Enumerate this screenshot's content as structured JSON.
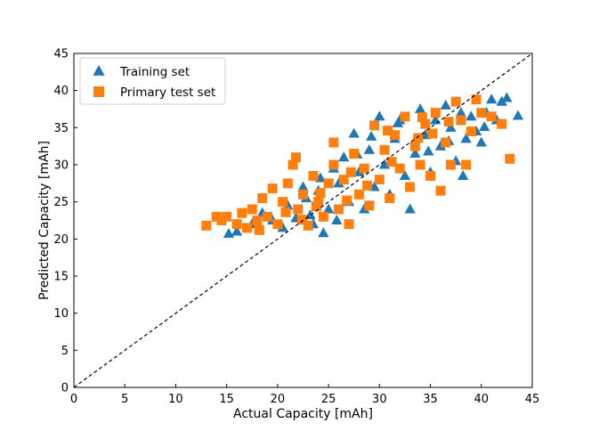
{
  "chart_data": {
    "type": "scatter",
    "title": "",
    "xlabel": "Actual Capacity [mAh]",
    "ylabel": "Predicted Capacity [mAh]",
    "xlim": [
      0,
      45
    ],
    "ylim": [
      0,
      45
    ],
    "xticks": [
      0,
      5,
      10,
      15,
      20,
      25,
      30,
      35,
      40,
      45
    ],
    "yticks": [
      0,
      5,
      10,
      15,
      20,
      25,
      30,
      35,
      40,
      45
    ],
    "grid": false,
    "legend_position": "top-left",
    "reference_line": {
      "label": "y = x",
      "style": "dashed",
      "color": "#000000"
    },
    "series": [
      {
        "name": "Training set",
        "marker": "triangle",
        "color": "#1f77b4",
        "points": [
          [
            15.2,
            20.7
          ],
          [
            16.0,
            21.0
          ],
          [
            17.5,
            22.0
          ],
          [
            18.5,
            23.5
          ],
          [
            19.5,
            22.5
          ],
          [
            20.5,
            21.5
          ],
          [
            21.0,
            24.5
          ],
          [
            21.8,
            22.8
          ],
          [
            22.5,
            27.0
          ],
          [
            22.8,
            25.5
          ],
          [
            23.5,
            22.0
          ],
          [
            24.0,
            26.5
          ],
          [
            24.2,
            28.2
          ],
          [
            24.5,
            20.8
          ],
          [
            25.0,
            24.0
          ],
          [
            25.5,
            29.5
          ],
          [
            25.8,
            22.5
          ],
          [
            26.0,
            27.5
          ],
          [
            26.5,
            31.0
          ],
          [
            27.0,
            25.0
          ],
          [
            27.5,
            34.2
          ],
          [
            28.0,
            29.0
          ],
          [
            28.5,
            24.0
          ],
          [
            29.0,
            32.0
          ],
          [
            29.5,
            27.0
          ],
          [
            30.0,
            36.5
          ],
          [
            30.5,
            30.0
          ],
          [
            31.0,
            26.0
          ],
          [
            31.5,
            33.5
          ],
          [
            32.0,
            36.0
          ],
          [
            32.5,
            28.5
          ],
          [
            33.0,
            24.0
          ],
          [
            33.5,
            31.5
          ],
          [
            34.0,
            37.5
          ],
          [
            34.5,
            34.0
          ],
          [
            35.0,
            29.0
          ],
          [
            35.5,
            36.0
          ],
          [
            36.0,
            32.5
          ],
          [
            36.5,
            38.0
          ],
          [
            37.0,
            35.0
          ],
          [
            37.5,
            30.5
          ],
          [
            38.0,
            37.0
          ],
          [
            38.2,
            28.5
          ],
          [
            38.5,
            33.5
          ],
          [
            39.0,
            36.5
          ],
          [
            39.5,
            34.5
          ],
          [
            40.0,
            33.0
          ],
          [
            40.5,
            37.0
          ],
          [
            41.0,
            38.8
          ],
          [
            41.5,
            36.0
          ],
          [
            42.0,
            38.5
          ],
          [
            42.5,
            39.0
          ],
          [
            43.6,
            36.6
          ],
          [
            29.2,
            33.8
          ],
          [
            31.8,
            35.6
          ],
          [
            34.8,
            31.8
          ],
          [
            27.8,
            31.4
          ],
          [
            23.2,
            23.2
          ],
          [
            36.8,
            33.2
          ],
          [
            40.3,
            35.1
          ]
        ]
      },
      {
        "name": "Primary test set",
        "marker": "square",
        "color": "#ff7f0e",
        "points": [
          [
            13.0,
            21.8
          ],
          [
            14.0,
            23.0
          ],
          [
            14.5,
            22.5
          ],
          [
            15.0,
            23.0
          ],
          [
            16.0,
            22.0
          ],
          [
            16.5,
            23.5
          ],
          [
            17.0,
            21.5
          ],
          [
            17.5,
            24.0
          ],
          [
            18.0,
            22.5
          ],
          [
            18.5,
            25.5
          ],
          [
            19.0,
            23.0
          ],
          [
            19.5,
            26.8
          ],
          [
            20.0,
            22.0
          ],
          [
            20.5,
            25.0
          ],
          [
            21.0,
            27.5
          ],
          [
            21.5,
            30.0
          ],
          [
            21.8,
            31.0
          ],
          [
            22.0,
            24.0
          ],
          [
            22.5,
            26.0
          ],
          [
            23.0,
            21.8
          ],
          [
            23.5,
            28.5
          ],
          [
            24.0,
            25.0
          ],
          [
            24.5,
            23.0
          ],
          [
            25.0,
            27.5
          ],
          [
            25.5,
            30.0
          ],
          [
            25.5,
            33.0
          ],
          [
            26.0,
            24.0
          ],
          [
            26.5,
            28.0
          ],
          [
            27.0,
            22.0
          ],
          [
            27.5,
            31.5
          ],
          [
            28.0,
            26.0
          ],
          [
            28.5,
            29.5
          ],
          [
            29.0,
            24.5
          ],
          [
            29.5,
            35.3
          ],
          [
            30.0,
            28.0
          ],
          [
            30.5,
            32.0
          ],
          [
            31.0,
            25.5
          ],
          [
            31.5,
            34.0
          ],
          [
            32.0,
            29.5
          ],
          [
            32.5,
            36.5
          ],
          [
            33.0,
            27.0
          ],
          [
            33.5,
            32.5
          ],
          [
            34.0,
            30.0
          ],
          [
            34.5,
            35.5
          ],
          [
            35.0,
            28.5
          ],
          [
            35.5,
            37.0
          ],
          [
            36.0,
            26.5
          ],
          [
            36.5,
            33.0
          ],
          [
            37.0,
            30.0
          ],
          [
            37.5,
            38.5
          ],
          [
            38.0,
            36.0
          ],
          [
            38.5,
            30.0
          ],
          [
            39.0,
            34.5
          ],
          [
            39.5,
            38.8
          ],
          [
            40.0,
            37.0
          ],
          [
            41.0,
            36.5
          ],
          [
            42.0,
            35.5
          ],
          [
            42.8,
            30.8
          ],
          [
            24.2,
            26.2
          ],
          [
            26.8,
            25.2
          ],
          [
            28.8,
            27.2
          ],
          [
            31.2,
            30.4
          ],
          [
            33.8,
            33.6
          ],
          [
            35.2,
            34.2
          ],
          [
            22.4,
            22.6
          ],
          [
            20.8,
            23.6
          ],
          [
            27.2,
            29.0
          ],
          [
            30.8,
            34.6
          ],
          [
            34.2,
            36.4
          ],
          [
            36.8,
            35.8
          ],
          [
            18.2,
            21.2
          ],
          [
            23.8,
            24.4
          ]
        ]
      }
    ]
  }
}
